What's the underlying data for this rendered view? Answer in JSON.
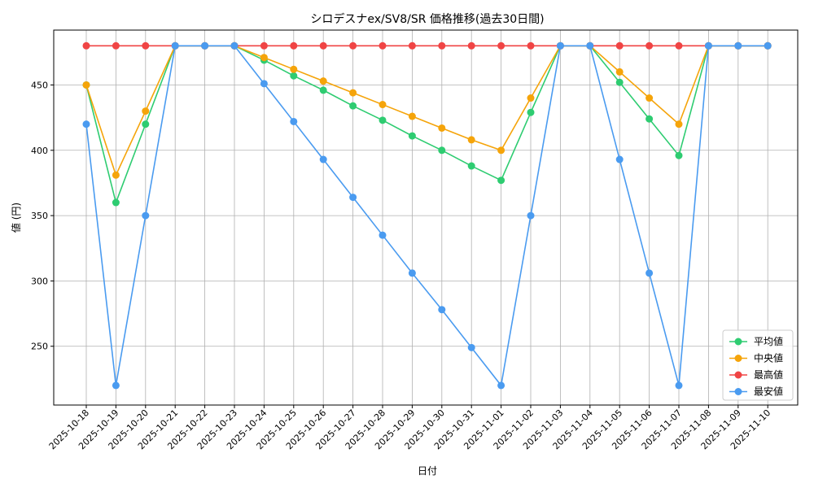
{
  "chart_data": {
    "type": "line",
    "title": "シロデスナex/SV8/SR 価格推移(過去30日間)",
    "xlabel": "日付",
    "ylabel": "値 (円)",
    "categories": [
      "2025-10-18",
      "2025-10-19",
      "2025-10-20",
      "2025-10-21",
      "2025-10-22",
      "2025-10-23",
      "2025-10-24",
      "2025-10-25",
      "2025-10-26",
      "2025-10-27",
      "2025-10-28",
      "2025-10-29",
      "2025-10-30",
      "2025-10-31",
      "2025-11-01",
      "2025-11-02",
      "2025-11-03",
      "2025-11-04",
      "2025-11-05",
      "2025-11-06",
      "2025-11-07",
      "2025-11-08",
      "2025-11-09",
      "2025-11-10"
    ],
    "yticks": [
      250,
      300,
      350,
      400,
      450
    ],
    "ylim": [
      205,
      492
    ],
    "grid": true,
    "legend_position": "bottom-right",
    "series": [
      {
        "name": "平均値",
        "color": "#2ecc71",
        "values": [
          450,
          360,
          420,
          480,
          480,
          480,
          469,
          457,
          446,
          434,
          423,
          411,
          400,
          388,
          377,
          429,
          480,
          480,
          452,
          424,
          396,
          480,
          480,
          480
        ]
      },
      {
        "name": "中央値",
        "color": "#f5a40a",
        "values": [
          450,
          381,
          430,
          480,
          480,
          480,
          471,
          462,
          453,
          444,
          435,
          426,
          417,
          408,
          400,
          440,
          480,
          480,
          460,
          440,
          420,
          480,
          480,
          480
        ]
      },
      {
        "name": "最高値",
        "color": "#f04444",
        "values": [
          480,
          480,
          480,
          480,
          480,
          480,
          480,
          480,
          480,
          480,
          480,
          480,
          480,
          480,
          480,
          480,
          480,
          480,
          480,
          480,
          480,
          480,
          480,
          480
        ]
      },
      {
        "name": "最安値",
        "color": "#4a9bf0",
        "values": [
          420,
          220,
          350,
          480,
          480,
          480,
          451,
          422,
          393,
          364,
          335,
          306,
          278,
          249,
          220,
          350,
          480,
          480,
          393,
          306,
          220,
          480,
          480,
          480
        ]
      }
    ],
    "draw_order": [
      0,
      1,
      2,
      3
    ]
  }
}
